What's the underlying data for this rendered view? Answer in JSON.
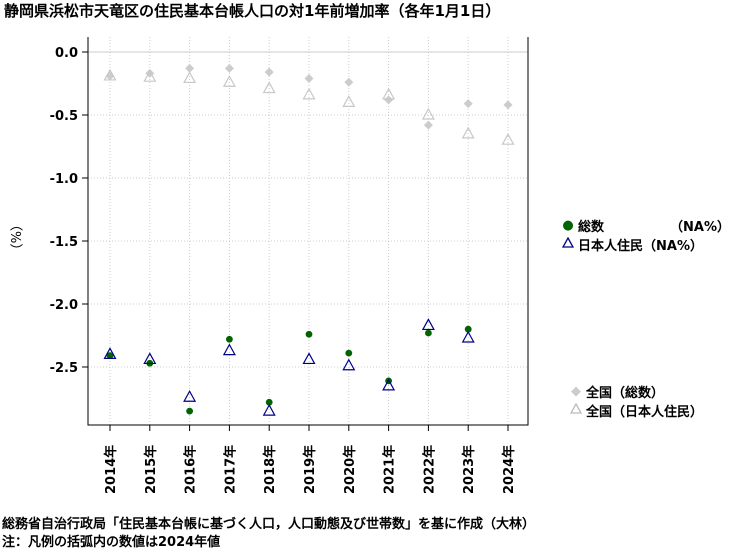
{
  "title": "静岡県浜松市天竜区の住民基本台帳人口の対1年前増加率（各年1月1日）",
  "ylabel": "（%）",
  "legend_top": [
    {
      "name": "総数",
      "na": "（NA%）"
    },
    {
      "name": "日本人住民",
      "na": "（NA%）"
    }
  ],
  "legend_bottom": [
    {
      "name": "全国（総数）"
    },
    {
      "name": "全国（日本人住民）"
    }
  ],
  "footer": {
    "source": "総務省自治行政局「住民基本台帳に基づく人口，人口動態及び世帯数」を基に作成（大林）",
    "note": "注：凡例の括弧内の数値は2024年値"
  },
  "colors": {
    "total": "#006400",
    "japanese": "#00008b",
    "national_total": "#cccccc",
    "national_japanese": "#cccccc",
    "grid": "#cccccc"
  },
  "chart_data": {
    "type": "scatter",
    "x": [
      "2014年",
      "2015年",
      "2016年",
      "2017年",
      "2018年",
      "2019年",
      "2020年",
      "2021年",
      "2022年",
      "2023年",
      "2024年"
    ],
    "yticks": [
      "0.0",
      "-0.5",
      "-1.0",
      "-1.5",
      "-2.0",
      "-2.5"
    ],
    "ylim": [
      -3.0,
      0.05
    ],
    "grid": true,
    "series": [
      {
        "name": "総数",
        "marker": "dot",
        "values": [
          -2.41,
          -2.47,
          -2.85,
          -2.28,
          -2.78,
          -2.24,
          -2.39,
          -2.61,
          -2.23,
          -2.2,
          null
        ]
      },
      {
        "name": "日本人住民",
        "marker": "triangle",
        "values": [
          -2.4,
          -2.44,
          -2.74,
          -2.37,
          -2.85,
          -2.44,
          -2.49,
          -2.65,
          -2.17,
          -2.27,
          null
        ]
      },
      {
        "name": "全国（総数）",
        "marker": "diamond",
        "values": [
          -0.19,
          -0.17,
          -0.13,
          -0.13,
          -0.16,
          -0.21,
          -0.24,
          -0.38,
          -0.58,
          -0.41,
          -0.42
        ]
      },
      {
        "name": "全国（日本人住民）",
        "marker": "triangle",
        "values": [
          -0.19,
          -0.2,
          -0.21,
          -0.24,
          -0.29,
          -0.34,
          -0.4,
          -0.34,
          -0.5,
          -0.65,
          -0.7
        ]
      }
    ]
  }
}
